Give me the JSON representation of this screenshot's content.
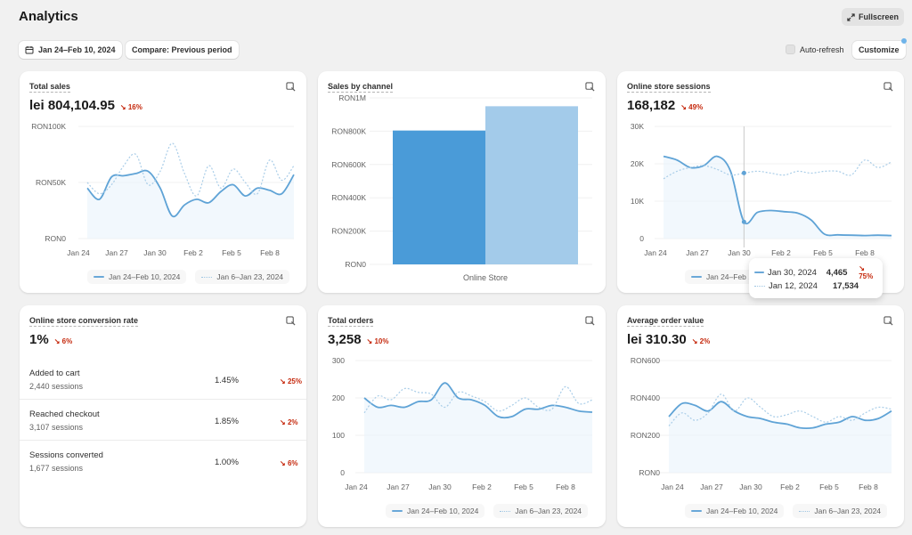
{
  "header": {
    "title": "Analytics",
    "fullscreen_label": "Fullscreen",
    "date_range_label": "Jan 24–Feb 10, 2024",
    "compare_label": "Compare: Previous period",
    "autorefresh_label": "Auto-refresh",
    "customize_label": "Customize"
  },
  "legend": {
    "current": "Jan 24–Feb 10, 2024",
    "previous": "Jan 6–Jan 23, 2024",
    "current_truncated": "Jan 24–Feb 1"
  },
  "colors": {
    "current_line": "#5fa3d6",
    "previous_line": "#a9cde8",
    "bar_current": "#4a9bd8",
    "bar_previous": "#a3cbea",
    "negative": "#c5280c"
  },
  "cards": {
    "total_sales": {
      "title": "Total sales",
      "value": "lei 804,104.95",
      "change": "16%"
    },
    "sales_by_channel": {
      "title": "Sales by channel"
    },
    "sessions": {
      "title": "Online store sessions",
      "value": "168,182",
      "change": "49%"
    },
    "conversion": {
      "title": "Online store conversion rate",
      "value": "1%",
      "change": "6%",
      "rows": [
        {
          "label": "Added to cart",
          "sessions": "2,440 sessions",
          "pct": "1.45%",
          "change": "25%"
        },
        {
          "label": "Reached checkout",
          "sessions": "3,107 sessions",
          "pct": "1.85%",
          "change": "2%"
        },
        {
          "label": "Sessions converted",
          "sessions": "1,677 sessions",
          "pct": "1.00%",
          "change": "6%"
        }
      ]
    },
    "total_orders": {
      "title": "Total orders",
      "value": "3,258",
      "change": "10%"
    },
    "aov": {
      "title": "Average order value",
      "value": "lei 310.30",
      "change": "2%"
    }
  },
  "tooltip": {
    "current_date": "Jan 30, 2024",
    "current_value": "4,465",
    "current_change": "75%",
    "previous_date": "Jan 12, 2024",
    "previous_value": "17,534"
  },
  "chart_data": [
    {
      "id": "total_sales",
      "type": "line",
      "x_ticks": [
        "Jan 24",
        "Jan 27",
        "Jan 30",
        "Feb 2",
        "Feb 5",
        "Feb 8"
      ],
      "y_ticks": [
        "RON100K",
        "RON50K",
        "RON0"
      ],
      "ylim": [
        0,
        100000
      ],
      "series": [
        {
          "name": "Jan 24–Feb 10, 2024",
          "values": [
            45000,
            35000,
            55000,
            56000,
            58000,
            60000,
            45000,
            20000,
            30000,
            35000,
            32000,
            42000,
            48000,
            38000,
            45000,
            43000,
            40000,
            57000
          ]
        },
        {
          "name": "Jan 6–Jan 23, 2024",
          "values": [
            50000,
            40000,
            48000,
            65000,
            75000,
            48000,
            60000,
            85000,
            58000,
            38000,
            65000,
            45000,
            62000,
            50000,
            40000,
            70000,
            52000,
            65000
          ]
        }
      ]
    },
    {
      "id": "sales_by_channel",
      "type": "bar",
      "categories": [
        "Online Store"
      ],
      "y_ticks": [
        "RON1M",
        "RON800K",
        "RON600K",
        "RON400K",
        "RON200K",
        "RON0"
      ],
      "ylim": [
        0,
        1000000
      ],
      "series": [
        {
          "name": "Jan 24–Feb 10, 2024",
          "values": [
            804105
          ]
        },
        {
          "name": "Jan 6–Jan 23, 2024",
          "values": [
            950000
          ]
        }
      ]
    },
    {
      "id": "sessions",
      "type": "line",
      "x_ticks": [
        "Jan 24",
        "Jan 27",
        "Jan 30",
        "Feb 2",
        "Feb 5",
        "Feb 8"
      ],
      "y_ticks": [
        "30K",
        "20K",
        "10K",
        "0"
      ],
      "ylim": [
        0,
        30000
      ],
      "series": [
        {
          "name": "Jan 24–Feb 10, 2024",
          "values": [
            22000,
            21000,
            19000,
            19500,
            22000,
            18000,
            4465,
            7000,
            7500,
            7200,
            6800,
            5000,
            1200,
            1000,
            900,
            800,
            900,
            800
          ]
        },
        {
          "name": "Jan 6–Jan 23, 2024",
          "values": [
            16000,
            18000,
            19000,
            19500,
            18500,
            17000,
            17534,
            18000,
            17500,
            17000,
            18000,
            17500,
            18000,
            18000,
            17000,
            21000,
            19000,
            20500
          ]
        }
      ]
    },
    {
      "id": "total_orders",
      "type": "line",
      "x_ticks": [
        "Jan 24",
        "Jan 27",
        "Jan 30",
        "Feb 2",
        "Feb 5",
        "Feb 8"
      ],
      "y_ticks": [
        "300",
        "200",
        "100",
        "0"
      ],
      "ylim": [
        0,
        300
      ],
      "series": [
        {
          "name": "Jan 24–Feb 10, 2024",
          "values": [
            200,
            175,
            180,
            175,
            190,
            195,
            240,
            200,
            195,
            180,
            150,
            150,
            170,
            170,
            180,
            175,
            165,
            162
          ]
        },
        {
          "name": "Jan 6–Jan 23, 2024",
          "values": [
            160,
            205,
            195,
            225,
            215,
            210,
            175,
            215,
            205,
            190,
            165,
            180,
            200,
            175,
            170,
            230,
            185,
            195
          ]
        }
      ]
    },
    {
      "id": "aov",
      "type": "line",
      "x_ticks": [
        "Jan 24",
        "Jan 27",
        "Jan 30",
        "Feb 2",
        "Feb 5",
        "Feb 8"
      ],
      "y_ticks": [
        "RON600",
        "RON400",
        "RON200",
        "RON0"
      ],
      "ylim": [
        0,
        600
      ],
      "series": [
        {
          "name": "Jan 24–Feb 10, 2024",
          "values": [
            300,
            370,
            360,
            330,
            380,
            330,
            300,
            290,
            270,
            260,
            240,
            240,
            260,
            270,
            300,
            280,
            290,
            330
          ]
        },
        {
          "name": "Jan 6–Jan 23, 2024",
          "values": [
            250,
            320,
            280,
            320,
            420,
            330,
            400,
            350,
            300,
            310,
            330,
            300,
            270,
            300,
            280,
            320,
            350,
            340
          ]
        }
      ]
    }
  ]
}
